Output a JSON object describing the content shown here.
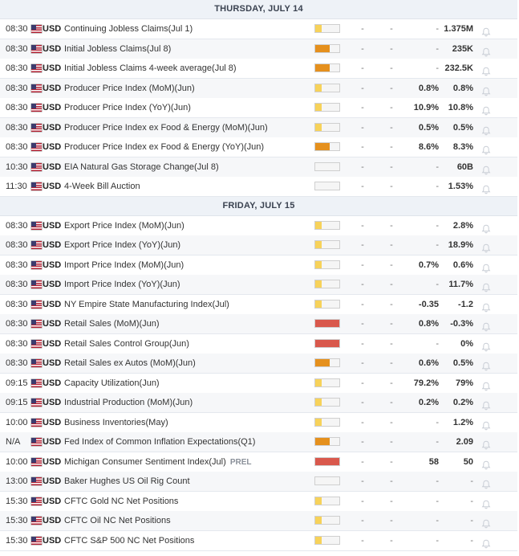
{
  "colors": {
    "header_bg": "#eef2f7",
    "row_alt_bg": "#f6f7f9",
    "importance_low": "#f7d25a",
    "importance_medium": "#e5901d",
    "importance_high": "#d9584c",
    "importance_empty": "#f5f5f5"
  },
  "days": [
    {
      "title": "THURSDAY, JULY 14",
      "events": [
        {
          "time": "08:30",
          "currency": "USD",
          "name": "Continuing Jobless Claims(Jul 1)",
          "tag": "",
          "importance": "low",
          "importance_fraction": 0.25,
          "actual": "-",
          "deviation": "-",
          "consensus": "-",
          "previous": "1.375M",
          "bell_icon": "bell-icon"
        },
        {
          "time": "08:30",
          "currency": "USD",
          "name": "Initial Jobless Claims(Jul 8)",
          "tag": "",
          "importance": "medium",
          "importance_fraction": 0.6,
          "actual": "-",
          "deviation": "-",
          "consensus": "-",
          "previous": "235K",
          "bell_icon": "bell-icon"
        },
        {
          "time": "08:30",
          "currency": "USD",
          "name": "Initial Jobless Claims 4-week average(Jul 8)",
          "tag": "",
          "importance": "medium",
          "importance_fraction": 0.6,
          "actual": "-",
          "deviation": "-",
          "consensus": "-",
          "previous": "232.5K",
          "bell_icon": "bell-icon"
        },
        {
          "time": "08:30",
          "currency": "USD",
          "name": "Producer Price Index (MoM)(Jun)",
          "tag": "",
          "importance": "low",
          "importance_fraction": 0.25,
          "actual": "-",
          "deviation": "-",
          "consensus": "0.8%",
          "previous": "0.8%",
          "bell_icon": "bell-icon"
        },
        {
          "time": "08:30",
          "currency": "USD",
          "name": "Producer Price Index (YoY)(Jun)",
          "tag": "",
          "importance": "low",
          "importance_fraction": 0.25,
          "actual": "-",
          "deviation": "-",
          "consensus": "10.9%",
          "previous": "10.8%",
          "bell_icon": "bell-icon"
        },
        {
          "time": "08:30",
          "currency": "USD",
          "name": "Producer Price Index ex Food & Energy (MoM)(Jun)",
          "tag": "",
          "importance": "low",
          "importance_fraction": 0.25,
          "actual": "-",
          "deviation": "-",
          "consensus": "0.5%",
          "previous": "0.5%",
          "bell_icon": "bell-icon"
        },
        {
          "time": "08:30",
          "currency": "USD",
          "name": "Producer Price Index ex Food & Energy (YoY)(Jun)",
          "tag": "",
          "importance": "medium",
          "importance_fraction": 0.6,
          "actual": "-",
          "deviation": "-",
          "consensus": "8.6%",
          "previous": "8.3%",
          "bell_icon": "bell-icon"
        },
        {
          "time": "10:30",
          "currency": "USD",
          "name": "EIA Natural Gas Storage Change(Jul 8)",
          "tag": "",
          "importance": "none",
          "importance_fraction": 0,
          "actual": "-",
          "deviation": "-",
          "consensus": "-",
          "previous": "60B",
          "bell_icon": "bell-icon"
        },
        {
          "time": "11:30",
          "currency": "USD",
          "name": "4-Week Bill Auction",
          "tag": "",
          "importance": "none",
          "importance_fraction": 0,
          "actual": "-",
          "deviation": "-",
          "consensus": "-",
          "previous": "1.53%",
          "bell_icon": "bell-icon"
        }
      ]
    },
    {
      "title": "FRIDAY, JULY 15",
      "events": [
        {
          "time": "08:30",
          "currency": "USD",
          "name": "Export Price Index (MoM)(Jun)",
          "tag": "",
          "importance": "low",
          "importance_fraction": 0.25,
          "actual": "-",
          "deviation": "-",
          "consensus": "-",
          "previous": "2.8%",
          "bell_icon": "bell-icon"
        },
        {
          "time": "08:30",
          "currency": "USD",
          "name": "Export Price Index (YoY)(Jun)",
          "tag": "",
          "importance": "low",
          "importance_fraction": 0.25,
          "actual": "-",
          "deviation": "-",
          "consensus": "-",
          "previous": "18.9%",
          "bell_icon": "bell-icon"
        },
        {
          "time": "08:30",
          "currency": "USD",
          "name": "Import Price Index (MoM)(Jun)",
          "tag": "",
          "importance": "low",
          "importance_fraction": 0.25,
          "actual": "-",
          "deviation": "-",
          "consensus": "0.7%",
          "previous": "0.6%",
          "bell_icon": "bell-icon"
        },
        {
          "time": "08:30",
          "currency": "USD",
          "name": "Import Price Index (YoY)(Jun)",
          "tag": "",
          "importance": "low",
          "importance_fraction": 0.25,
          "actual": "-",
          "deviation": "-",
          "consensus": "-",
          "previous": "11.7%",
          "bell_icon": "bell-icon"
        },
        {
          "time": "08:30",
          "currency": "USD",
          "name": "NY Empire State Manufacturing Index(Jul)",
          "tag": "",
          "importance": "low",
          "importance_fraction": 0.25,
          "actual": "-",
          "deviation": "-",
          "consensus": "-0.35",
          "previous": "-1.2",
          "bell_icon": "bell-icon"
        },
        {
          "time": "08:30",
          "currency": "USD",
          "name": "Retail Sales (MoM)(Jun)",
          "tag": "",
          "importance": "high",
          "importance_fraction": 1.0,
          "actual": "-",
          "deviation": "-",
          "consensus": "0.8%",
          "previous": "-0.3%",
          "bell_icon": "bell-icon"
        },
        {
          "time": "08:30",
          "currency": "USD",
          "name": "Retail Sales Control Group(Jun)",
          "tag": "",
          "importance": "high",
          "importance_fraction": 1.0,
          "actual": "-",
          "deviation": "-",
          "consensus": "-",
          "previous": "0%",
          "bell_icon": "bell-icon"
        },
        {
          "time": "08:30",
          "currency": "USD",
          "name": "Retail Sales ex Autos (MoM)(Jun)",
          "tag": "",
          "importance": "medium",
          "importance_fraction": 0.6,
          "actual": "-",
          "deviation": "-",
          "consensus": "0.6%",
          "previous": "0.5%",
          "bell_icon": "bell-icon"
        },
        {
          "time": "09:15",
          "currency": "USD",
          "name": "Capacity Utilization(Jun)",
          "tag": "",
          "importance": "low",
          "importance_fraction": 0.25,
          "actual": "-",
          "deviation": "-",
          "consensus": "79.2%",
          "previous": "79%",
          "bell_icon": "bell-icon"
        },
        {
          "time": "09:15",
          "currency": "USD",
          "name": "Industrial Production (MoM)(Jun)",
          "tag": "",
          "importance": "low",
          "importance_fraction": 0.25,
          "actual": "-",
          "deviation": "-",
          "consensus": "0.2%",
          "previous": "0.2%",
          "bell_icon": "bell-icon"
        },
        {
          "time": "10:00",
          "currency": "USD",
          "name": "Business Inventories(May)",
          "tag": "",
          "importance": "low",
          "importance_fraction": 0.25,
          "actual": "-",
          "deviation": "-",
          "consensus": "-",
          "previous": "1.2%",
          "bell_icon": "bell-icon"
        },
        {
          "time": "N/A",
          "currency": "USD",
          "name": "Fed Index of Common Inflation Expectations(Q1)",
          "tag": "",
          "importance": "medium",
          "importance_fraction": 0.6,
          "actual": "-",
          "deviation": "-",
          "consensus": "-",
          "previous": "2.09",
          "bell_icon": "bell-icon"
        },
        {
          "time": "10:00",
          "currency": "USD",
          "name": "Michigan Consumer Sentiment Index(Jul)",
          "tag": "PREL",
          "importance": "high",
          "importance_fraction": 1.0,
          "actual": "-",
          "deviation": "-",
          "consensus": "58",
          "previous": "50",
          "bell_icon": "bell-icon"
        },
        {
          "time": "13:00",
          "currency": "USD",
          "name": "Baker Hughes US Oil Rig Count",
          "tag": "",
          "importance": "none",
          "importance_fraction": 0,
          "actual": "-",
          "deviation": "-",
          "consensus": "-",
          "previous": "-",
          "bell_icon": "bell-icon"
        },
        {
          "time": "15:30",
          "currency": "USD",
          "name": "CFTC Gold NC Net Positions",
          "tag": "",
          "importance": "low",
          "importance_fraction": 0.25,
          "actual": "-",
          "deviation": "-",
          "consensus": "-",
          "previous": "-",
          "bell_icon": "bell-icon"
        },
        {
          "time": "15:30",
          "currency": "USD",
          "name": "CFTC Oil NC Net Positions",
          "tag": "",
          "importance": "low",
          "importance_fraction": 0.25,
          "actual": "-",
          "deviation": "-",
          "consensus": "-",
          "previous": "-",
          "bell_icon": "bell-icon"
        },
        {
          "time": "15:30",
          "currency": "USD",
          "name": "CFTC S&P 500 NC Net Positions",
          "tag": "",
          "importance": "low",
          "importance_fraction": 0.25,
          "actual": "-",
          "deviation": "-",
          "consensus": "-",
          "previous": "-",
          "bell_icon": "bell-icon"
        }
      ]
    }
  ]
}
